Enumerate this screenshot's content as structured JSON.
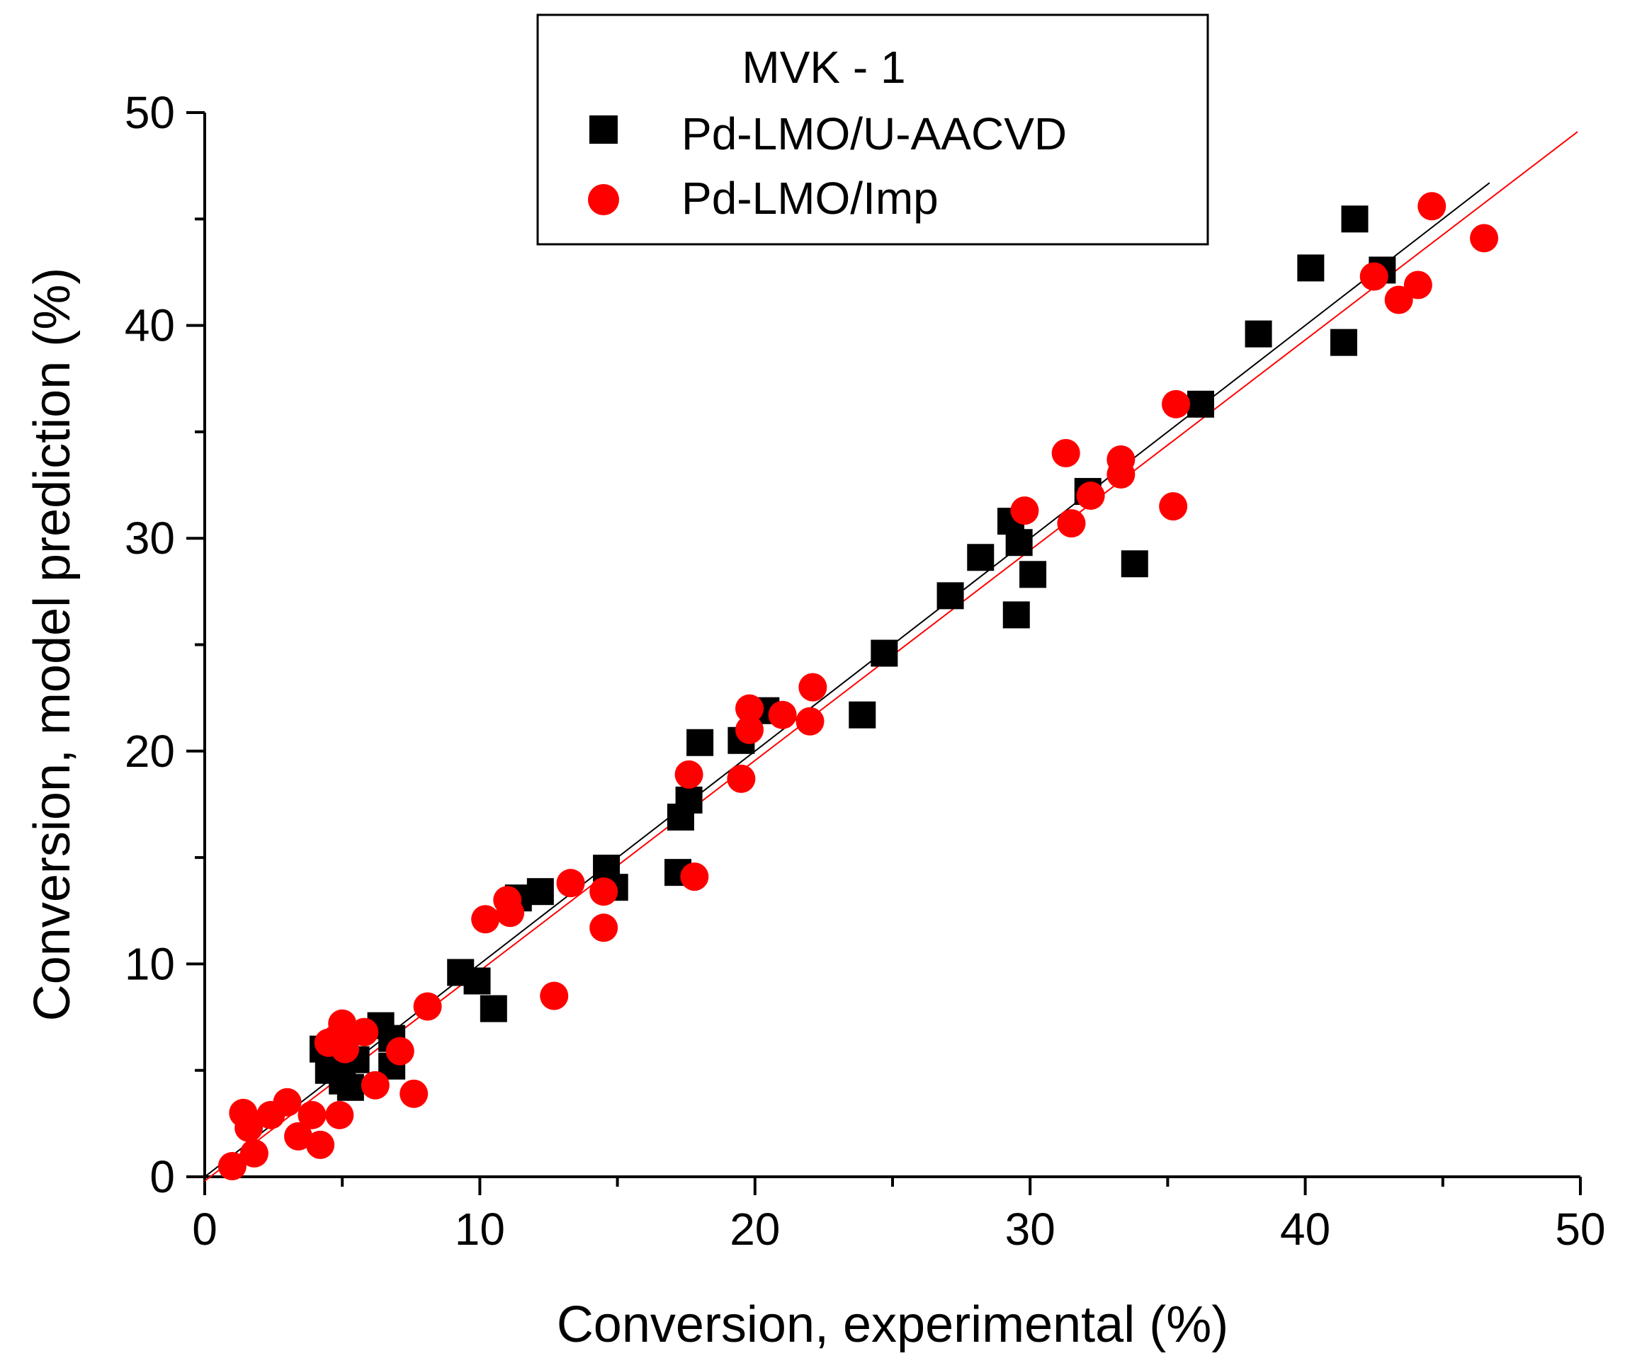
{
  "chart_data": {
    "type": "scatter",
    "title": "",
    "xlabel": "Conversion, experimental (%)",
    "ylabel": "Conversion, model prediction (%)",
    "xlim": [
      0,
      50
    ],
    "ylim": [
      0,
      50
    ],
    "xticks": [
      0,
      10,
      20,
      30,
      40,
      50
    ],
    "yticks": [
      0,
      10,
      20,
      30,
      40,
      50
    ],
    "legend": {
      "title": "MVK - 1",
      "placement": "top-center"
    },
    "series": [
      {
        "name": "Pd-LMO/U-AACVD",
        "marker": "square",
        "color": "#000000",
        "points": [
          [
            4.3,
            6.0
          ],
          [
            4.5,
            5.0
          ],
          [
            4.8,
            5.5
          ],
          [
            5.0,
            4.5
          ],
          [
            5.3,
            4.2
          ],
          [
            5.5,
            5.5
          ],
          [
            6.4,
            7.1
          ],
          [
            6.8,
            6.5
          ],
          [
            6.8,
            5.2
          ],
          [
            9.3,
            9.6
          ],
          [
            9.9,
            9.2
          ],
          [
            10.5,
            7.9
          ],
          [
            11.4,
            13.1
          ],
          [
            12.2,
            13.4
          ],
          [
            14.6,
            14.5
          ],
          [
            14.9,
            13.6
          ],
          [
            17.2,
            14.3
          ],
          [
            17.3,
            16.9
          ],
          [
            17.6,
            17.7
          ],
          [
            18.0,
            20.4
          ],
          [
            19.5,
            20.5
          ],
          [
            20.4,
            21.9
          ],
          [
            23.9,
            21.7
          ],
          [
            24.7,
            24.6
          ],
          [
            27.1,
            27.3
          ],
          [
            28.2,
            29.1
          ],
          [
            29.3,
            30.8
          ],
          [
            29.5,
            26.4
          ],
          [
            29.6,
            29.8
          ],
          [
            30.1,
            28.3
          ],
          [
            32.1,
            32.2
          ],
          [
            33.8,
            28.8
          ],
          [
            36.2,
            36.3
          ],
          [
            38.3,
            39.6
          ],
          [
            40.2,
            42.7
          ],
          [
            41.4,
            39.2
          ],
          [
            41.8,
            45.0
          ],
          [
            42.8,
            42.6
          ]
        ]
      },
      {
        "name": "Pd-LMO/Imp",
        "marker": "circle",
        "color": "#ff0000",
        "points": [
          [
            1.0,
            0.5
          ],
          [
            1.4,
            3.0
          ],
          [
            1.6,
            2.3
          ],
          [
            1.8,
            1.1
          ],
          [
            2.4,
            2.9
          ],
          [
            3.0,
            3.5
          ],
          [
            3.4,
            1.9
          ],
          [
            3.9,
            2.9
          ],
          [
            4.2,
            1.5
          ],
          [
            4.5,
            6.3
          ],
          [
            4.8,
            6.5
          ],
          [
            4.9,
            2.9
          ],
          [
            5.0,
            7.2
          ],
          [
            5.1,
            6.0
          ],
          [
            5.8,
            6.8
          ],
          [
            6.2,
            4.3
          ],
          [
            7.1,
            5.9
          ],
          [
            7.6,
            3.9
          ],
          [
            8.1,
            8.0
          ],
          [
            10.2,
            12.1
          ],
          [
            11.0,
            13.0
          ],
          [
            11.1,
            12.4
          ],
          [
            12.7,
            8.5
          ],
          [
            13.3,
            13.8
          ],
          [
            14.5,
            11.7
          ],
          [
            14.5,
            13.4
          ],
          [
            17.6,
            18.9
          ],
          [
            17.8,
            14.1
          ],
          [
            19.5,
            18.7
          ],
          [
            19.8,
            21.0
          ],
          [
            19.8,
            22.0
          ],
          [
            21.0,
            21.7
          ],
          [
            22.0,
            21.4
          ],
          [
            22.1,
            23.0
          ],
          [
            29.8,
            31.3
          ],
          [
            31.3,
            34.0
          ],
          [
            31.5,
            30.7
          ],
          [
            32.2,
            32.0
          ],
          [
            33.3,
            33.7
          ],
          [
            33.3,
            33.0
          ],
          [
            35.2,
            31.5
          ],
          [
            35.3,
            36.3
          ],
          [
            42.5,
            42.3
          ],
          [
            43.4,
            41.2
          ],
          [
            44.1,
            41.9
          ],
          [
            44.6,
            45.6
          ],
          [
            46.5,
            44.1
          ]
        ]
      }
    ],
    "fit_lines": [
      {
        "series": "Pd-LMO/U-AACVD",
        "color": "#000000",
        "from": [
          0.0,
          0.0
        ],
        "to": [
          46.7,
          46.7
        ]
      },
      {
        "series": "Pd-LMO/Imp",
        "color": "#ff0000",
        "from": [
          0.0,
          -0.2
        ],
        "to": [
          49.9,
          49.1
        ]
      }
    ],
    "grid": false
  }
}
